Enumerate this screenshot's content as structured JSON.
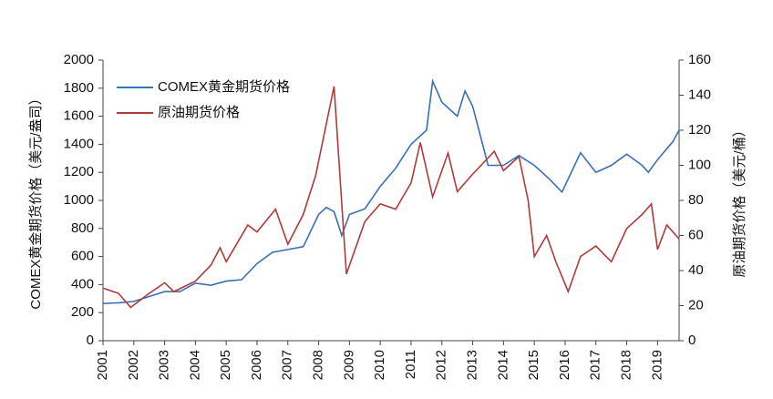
{
  "chart_data": {
    "type": "line",
    "y_label": "COMEX黄金期货价格（美元/盎司）",
    "y2_label": "原油期货价格（美元/桶）",
    "xlim": [
      2001,
      2019.7
    ],
    "xticks": [
      2001,
      2002,
      2003,
      2004,
      2005,
      2006,
      2007,
      2008,
      2009,
      2010,
      2011,
      2012,
      2013,
      2014,
      2015,
      2016,
      2017,
      2018,
      2019
    ],
    "ylim": [
      0,
      2000
    ],
    "yticks": [
      0,
      200,
      400,
      600,
      800,
      1000,
      1200,
      1400,
      1600,
      1800,
      2000
    ],
    "y2lim": [
      0,
      160
    ],
    "y2ticks": [
      0,
      20,
      40,
      60,
      80,
      100,
      120,
      140,
      160
    ],
    "grid": false,
    "legend": "upper left",
    "series": [
      {
        "name": "COMEX黄金期货价格",
        "color": "#3a6fb8",
        "x": [
          2001.0,
          2001.5,
          2002.0,
          2002.5,
          2003.0,
          2003.5,
          2004.0,
          2004.5,
          2005.0,
          2005.5,
          2006.0,
          2006.5,
          2007.0,
          2007.5,
          2008.0,
          2008.25,
          2008.5,
          2008.75,
          2009.0,
          2009.5,
          2010.0,
          2010.5,
          2011.0,
          2011.5,
          2011.7,
          2012.0,
          2012.5,
          2012.75,
          2013.0,
          2013.5,
          2014.0,
          2014.5,
          2015.0,
          2015.5,
          2015.9,
          2016.5,
          2017.0,
          2017.5,
          2018.0,
          2018.5,
          2018.7,
          2019.0,
          2019.5,
          2019.7
        ],
        "values": [
          265,
          270,
          280,
          315,
          350,
          350,
          410,
          395,
          425,
          435,
          550,
          630,
          650,
          670,
          900,
          950,
          920,
          750,
          900,
          940,
          1100,
          1230,
          1400,
          1500,
          1850,
          1700,
          1600,
          1780,
          1670,
          1250,
          1250,
          1320,
          1250,
          1150,
          1060,
          1340,
          1200,
          1250,
          1330,
          1250,
          1200,
          1290,
          1420,
          1500
        ]
      },
      {
        "name": "原油期货价格",
        "color": "#b03a3a",
        "axis": "y2",
        "x": [
          2001.0,
          2001.5,
          2001.9,
          2002.5,
          2003.0,
          2003.3,
          2004.0,
          2004.5,
          2004.8,
          2005.0,
          2005.7,
          2006.0,
          2006.6,
          2007.0,
          2007.5,
          2007.9,
          2008.5,
          2008.9,
          2009.5,
          2010.0,
          2010.5,
          2011.0,
          2011.3,
          2011.7,
          2012.2,
          2012.5,
          2013.0,
          2013.7,
          2014.0,
          2014.5,
          2014.8,
          2015.0,
          2015.4,
          2015.7,
          2016.1,
          2016.5,
          2017.0,
          2017.5,
          2018.0,
          2018.5,
          2018.8,
          2019.0,
          2019.3,
          2019.7
        ],
        "values": [
          30,
          27,
          19,
          27,
          33,
          28,
          34,
          43,
          53,
          45,
          66,
          62,
          75,
          55,
          72,
          94,
          145,
          38,
          68,
          78,
          75,
          90,
          113,
          82,
          107,
          85,
          95,
          108,
          97,
          105,
          80,
          48,
          60,
          45,
          28,
          48,
          54,
          45,
          64,
          72,
          78,
          52,
          66,
          58
        ]
      }
    ]
  }
}
